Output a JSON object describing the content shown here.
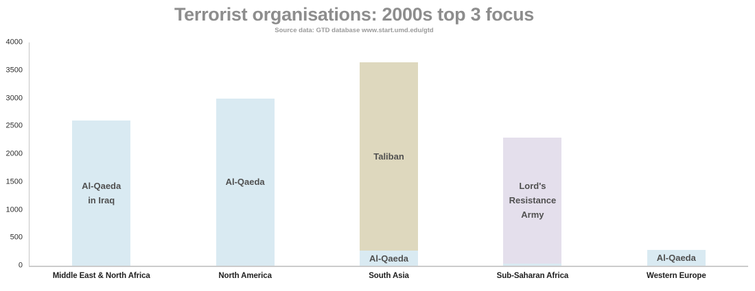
{
  "header": {
    "title": "Terrorist organisations: 2000s top 3 focus",
    "subtitle": "Source data: GTD database www.start.umd.edu/gtd"
  },
  "colors": {
    "al_qaeda_blue": "#d9eaf2",
    "taliban_tan": "#ded8be",
    "lra_lavender": "#e4dfec",
    "axis_line": "#c5c5c5",
    "baseline": "#cbcbcb",
    "title_gray": "#8d8d8d",
    "bar_label_text": "#505050",
    "tick_text": "#2e2e2e"
  },
  "chart_data": {
    "type": "bar",
    "stacked": true,
    "title": "Terrorist organisations: 2000s top 3 focus",
    "subtitle": "Source data: GTD database www.start.umd.edu/gtd",
    "xlabel": "",
    "ylabel": "",
    "ylim": [
      0,
      4000
    ],
    "yticks": [
      0,
      500,
      1000,
      1500,
      2000,
      2500,
      3000,
      3500,
      4000
    ],
    "grid": false,
    "legend": false,
    "categories": [
      "Middle East & North Africa",
      "North America",
      "South Asia",
      "Sub-Saharan Africa",
      "Western Europe"
    ],
    "groups": [
      {
        "category": "Middle East & North Africa",
        "segments": [
          {
            "label": "Al-Qaeda in Iraq",
            "label_lines": [
              "Al-Qaeda",
              "in Iraq"
            ],
            "value": 2600,
            "color": "#d9eaf2"
          }
        ]
      },
      {
        "category": "North America",
        "segments": [
          {
            "label": "Al-Qaeda",
            "label_lines": [
              "Al-Qaeda"
            ],
            "value": 3000,
            "color": "#d9eaf2"
          }
        ]
      },
      {
        "category": "South Asia",
        "segments": [
          {
            "label": "Al-Qaeda",
            "label_lines": [
              "Al-Qaeda"
            ],
            "value": 270,
            "color": "#d9eaf2"
          },
          {
            "label": "Taliban",
            "label_lines": [
              "Taliban"
            ],
            "value": 3380,
            "color": "#ded8be"
          }
        ]
      },
      {
        "category": "Sub-Saharan Africa",
        "segments": [
          {
            "label": "",
            "label_lines": [],
            "value": 40,
            "color": "#d9eaf2"
          },
          {
            "label": "Lord's Resistance Army",
            "label_lines": [
              "Lord's",
              "Resistance",
              "Army"
            ],
            "value": 2260,
            "color": "#e4dfec"
          }
        ]
      },
      {
        "category": "Western Europe",
        "segments": [
          {
            "label": "Al-Qaeda",
            "label_lines": [
              "Al-Qaeda"
            ],
            "value": 280,
            "color": "#d9eaf2"
          }
        ]
      }
    ]
  }
}
